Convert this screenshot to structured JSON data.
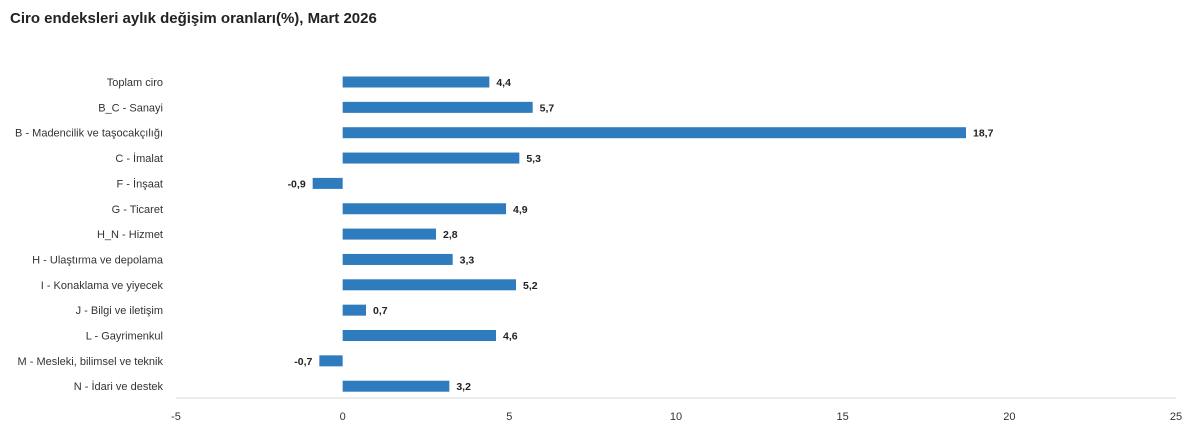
{
  "chart_data": {
    "type": "bar",
    "orientation": "horizontal",
    "title": "Ciro endeksleri aylık değişim oranları(%), Mart 2026",
    "categories": [
      "Toplam ciro",
      "B_C - Sanayi",
      "B - Madencilik ve taşocakçılığı",
      "C - İmalat",
      "F - İnşaat",
      "G - Ticaret",
      "H_N - Hizmet",
      "H - Ulaştırma ve depolama",
      "I - Konaklama ve yiyecek",
      "J - Bilgi ve iletişim",
      "L - Gayrimenkul",
      "M - Mesleki, bilimsel ve teknik",
      "N - İdari ve destek"
    ],
    "values": [
      4.4,
      5.7,
      18.7,
      5.3,
      -0.9,
      4.9,
      2.8,
      3.3,
      5.2,
      0.7,
      4.6,
      -0.7,
      3.2
    ],
    "value_labels": [
      "4,4",
      "5,7",
      "18,7",
      "5,3",
      "-0,9",
      "4,9",
      "2,8",
      "3,3",
      "5,2",
      "0,7",
      "4,6",
      "-0,7",
      "3,2"
    ],
    "xlim": [
      -5,
      25
    ],
    "xticks": [
      -5,
      0,
      5,
      10,
      15,
      20,
      25
    ],
    "xtick_labels": [
      "-5",
      "0",
      "5",
      "10",
      "15",
      "20",
      "25"
    ],
    "xlabel": "",
    "ylabel": "",
    "grid": false,
    "bar_color": "#2e7bbd"
  }
}
